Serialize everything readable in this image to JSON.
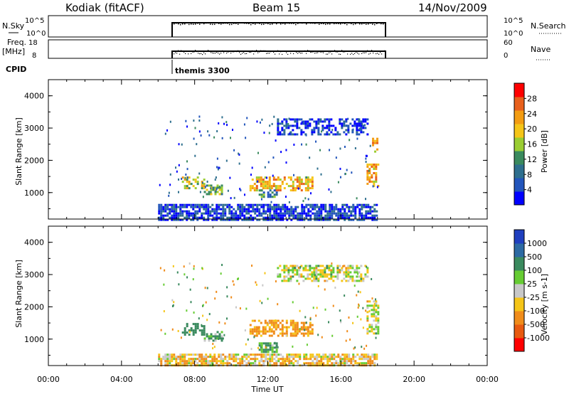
{
  "header": {
    "station": "Kodiak (fitACF)",
    "beam": "Beam 15",
    "date": "14/Nov/2009"
  },
  "status_panels": {
    "nsky_label": "N.Sky",
    "nsky_left_ticks": [
      "10^5",
      "10^0"
    ],
    "nsky_right_ticks": [
      "10^5",
      "10^0"
    ],
    "nsearch_label": "N.Search",
    "freq_label": "Freq.",
    "freq_unit": "[MHz]",
    "freq_ticks": [
      "18",
      "8"
    ],
    "nave_ticks": [
      "60",
      "0"
    ],
    "nave_label": "Nave",
    "cpid_label": "CPID",
    "cpid_value": "themis 3300"
  },
  "chart_data": [
    {
      "type": "heatmap",
      "title": "Power",
      "ylabel": "Slant Range [km]",
      "xlabel": "",
      "colorbar_label": "Power [dB]",
      "colorbar_ticks": [
        "28",
        "24",
        "20",
        "16",
        "12",
        "8",
        "4"
      ],
      "yticks": [
        "4000",
        "3000",
        "2000",
        "1000"
      ],
      "ylim": [
        180,
        4500
      ],
      "xlim_hours": [
        0,
        24
      ],
      "data_window_hours": [
        6,
        18
      ],
      "colors": [
        "#0000ff",
        "#2255bb",
        "#2e6f8e",
        "#3a8a5e",
        "#9acd32",
        "#f5c518",
        "#f39c12",
        "#e8601c",
        "#ff0000"
      ],
      "echo_regions": [
        {
          "x": [
            7.3,
            8.5
          ],
          "range": [
            1150,
            1500
          ],
          "value": 18
        },
        {
          "x": [
            8.5,
            9.5
          ],
          "range": [
            950,
            1250
          ],
          "value": 16
        },
        {
          "x": [
            11.0,
            14.5
          ],
          "range": [
            1100,
            1500
          ],
          "value": 20
        },
        {
          "x": [
            11.5,
            12.5
          ],
          "range": [
            900,
            1100
          ],
          "value": 12
        },
        {
          "x": [
            17.4,
            18.0
          ],
          "range": [
            1200,
            1900
          ],
          "value": 22
        },
        {
          "x": [
            17.7,
            18.0
          ],
          "range": [
            2300,
            2700
          ],
          "value": 20
        },
        {
          "x": [
            6.0,
            18.0
          ],
          "range": [
            180,
            650
          ],
          "value": 6
        },
        {
          "x": [
            12.5,
            17.5
          ],
          "range": [
            2800,
            3300
          ],
          "value": 5
        }
      ]
    },
    {
      "type": "heatmap",
      "title": "Velocity",
      "ylabel": "Slant Range [km]",
      "xlabel": "Time UT",
      "colorbar_label": "Velocity [m s-1]",
      "colorbar_ticks": [
        "1000",
        "500",
        "100",
        "25",
        "-25",
        "-100",
        "-500",
        "-1000"
      ],
      "yticks": [
        "4000",
        "3000",
        "2000",
        "1000"
      ],
      "xticks": [
        "00:00",
        "04:00",
        "08:00",
        "12:00",
        "16:00",
        "20:00",
        "00:00"
      ],
      "ylim": [
        180,
        4500
      ],
      "xlim_hours": [
        0,
        24
      ],
      "data_window_hours": [
        6,
        18
      ],
      "colors": [
        "#1f3fbf",
        "#2d6aa3",
        "#3a8a5e",
        "#66cc33",
        "#c8c8c8",
        "#f5c518",
        "#f08c1a",
        "#e85a10",
        "#ff0000"
      ],
      "echo_regions": [
        {
          "x": [
            7.3,
            8.5
          ],
          "range": [
            1150,
            1500
          ],
          "value": 300
        },
        {
          "x": [
            8.5,
            9.5
          ],
          "range": [
            950,
            1250
          ],
          "value": 100
        },
        {
          "x": [
            11.0,
            14.5
          ],
          "range": [
            1100,
            1600
          ],
          "value": -150
        },
        {
          "x": [
            11.5,
            12.5
          ],
          "range": [
            600,
            900
          ],
          "value": 120
        },
        {
          "x": [
            17.4,
            18.0
          ],
          "range": [
            1200,
            2200
          ],
          "value": 0
        },
        {
          "x": [
            6.0,
            18.0
          ],
          "range": [
            180,
            550
          ],
          "value": -60
        },
        {
          "x": [
            12.5,
            17.5
          ],
          "range": [
            2800,
            3300
          ],
          "value": 0
        }
      ]
    }
  ]
}
